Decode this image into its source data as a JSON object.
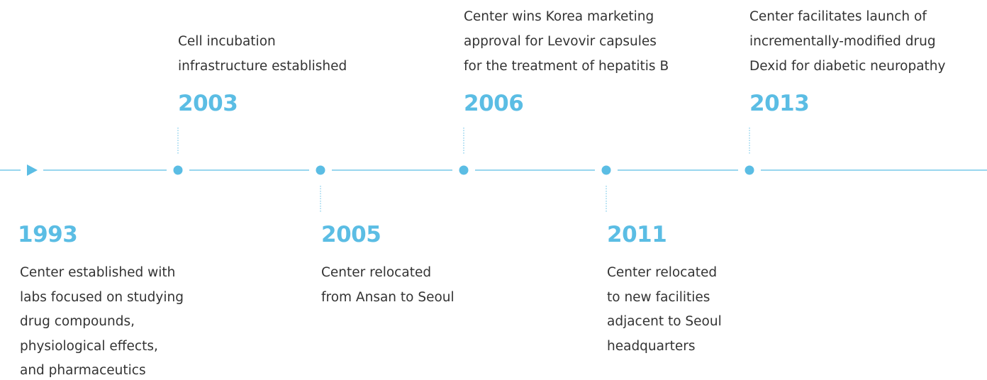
{
  "timeline": {
    "events": [
      {
        "year": "1993",
        "lines": [
          "Center established with",
          "labs focused on studying",
          "drug compounds,",
          "physiological effects,",
          "and pharmaceutics"
        ]
      },
      {
        "year": "2003",
        "lines": [
          "Cell incubation",
          "infrastructure established"
        ]
      },
      {
        "year": "2005",
        "lines": [
          "Center relocated",
          "from Ansan to Seoul"
        ]
      },
      {
        "year": "2006",
        "lines": [
          "Center wins Korea marketing",
          "approval for Levovir capsules",
          "for the treatment of hepatitis B"
        ]
      },
      {
        "year": "2011",
        "lines": [
          "Center relocated",
          "to new facilities",
          "adjacent to Seoul",
          "headquarters"
        ]
      },
      {
        "year": "2013",
        "lines": [
          "Center facilitates launch of",
          "incrementally-modified drug",
          "Dexid for diabetic neuropathy"
        ]
      }
    ]
  }
}
